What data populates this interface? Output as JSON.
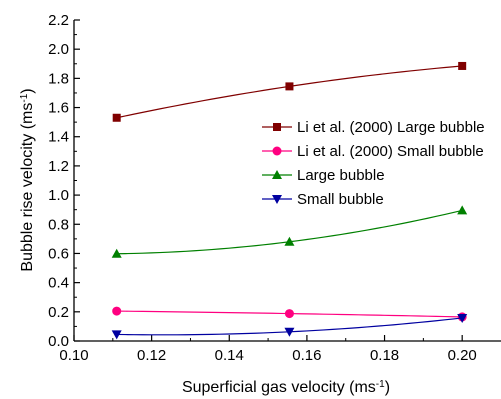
{
  "chart_data": {
    "type": "line",
    "x": [
      0.111,
      0.1555,
      0.2
    ],
    "series": [
      {
        "name": "Li et al. (2000) Large bubble",
        "values": [
          1.53,
          1.745,
          1.885
        ],
        "color": "#800000",
        "marker": "square"
      },
      {
        "name": "Li et al. (2000) Small bubble",
        "values": [
          0.205,
          0.188,
          0.165
        ],
        "color": "#ff0080",
        "marker": "circle"
      },
      {
        "name": "Large bubble",
        "values": [
          0.598,
          0.68,
          0.895
        ],
        "color": "#008000",
        "marker": "triangle-up"
      },
      {
        "name": "Small bubble",
        "values": [
          0.045,
          0.063,
          0.158
        ],
        "color": "#0000a0",
        "marker": "triangle-down"
      }
    ],
    "xlim": [
      0.1,
      0.21
    ],
    "ylim": [
      0.0,
      2.2
    ],
    "x_ticks": [
      "0.10",
      "0.12",
      "0.14",
      "0.16",
      "0.18",
      "0.20"
    ],
    "y_ticks": [
      "0.0",
      "0.2",
      "0.4",
      "0.6",
      "0.8",
      "1.0",
      "1.2",
      "1.4",
      "1.6",
      "1.8",
      "2.0",
      "2.2"
    ],
    "xlabel": {
      "base": "Superficial gas velocity (ms",
      "sup": "-1",
      "end": ")"
    },
    "ylabel": {
      "base": "Bubble rise velocity (ms",
      "sup": "-1",
      "end": ")"
    },
    "legend_position": "right-middle",
    "grid": false
  }
}
